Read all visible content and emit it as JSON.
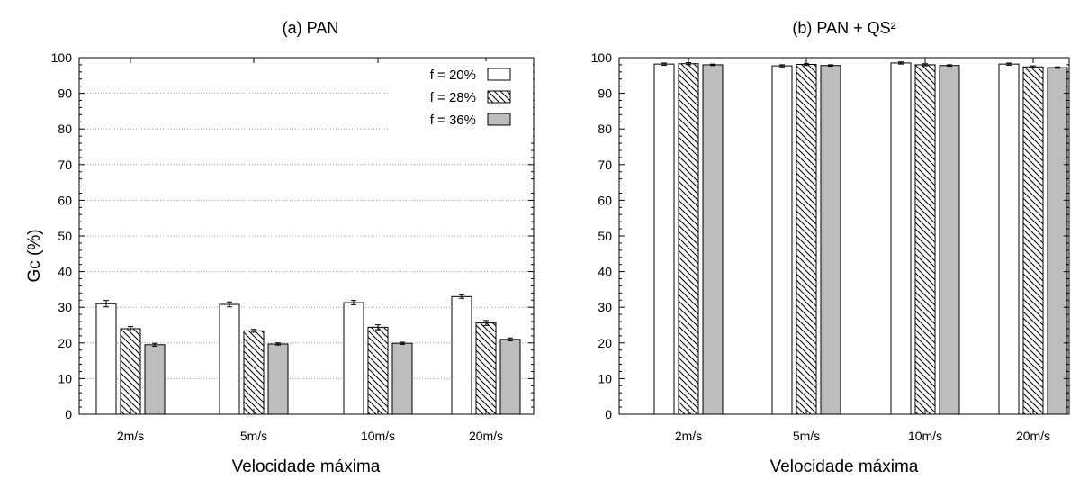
{
  "chart_data": [
    {
      "type": "bar",
      "title": "(a) PAN",
      "xlabel": "Velocidade máxima",
      "ylabel": "Gc (%)",
      "ylim": [
        0,
        100
      ],
      "yticks": [
        0,
        10,
        20,
        30,
        40,
        50,
        60,
        70,
        80,
        90,
        100
      ],
      "grid": true,
      "legend_position": "top-right",
      "categories": [
        "2m/s",
        "5m/s",
        "10m/s",
        "20m/s"
      ],
      "series": [
        {
          "name": "f = 20%",
          "style": "white",
          "values": [
            31.0,
            30.8,
            31.3,
            33.0
          ],
          "errors": [
            0.9,
            0.7,
            0.6,
            0.5
          ]
        },
        {
          "name": "f = 28%",
          "style": "hatch",
          "values": [
            24.0,
            23.4,
            24.4,
            25.6
          ],
          "errors": [
            0.6,
            0.4,
            0.7,
            0.7
          ]
        },
        {
          "name": "f = 36%",
          "style": "gray",
          "values": [
            19.5,
            19.7,
            19.9,
            21.0
          ],
          "errors": [
            0.4,
            0.3,
            0.3,
            0.4
          ]
        }
      ]
    },
    {
      "type": "bar",
      "title": "(b) PAN + QS²",
      "xlabel": "Velocidade máxima",
      "ylabel": "",
      "ylim": [
        0,
        100
      ],
      "yticks": [
        0,
        10,
        20,
        30,
        40,
        50,
        60,
        70,
        80,
        90,
        100
      ],
      "grid": false,
      "categories": [
        "2m/s",
        "5m/s",
        "10m/s",
        "20m/s"
      ],
      "series": [
        {
          "name": "f = 20%",
          "style": "white",
          "values": [
            98.2,
            97.7,
            98.5,
            98.2
          ],
          "errors": [
            0.3,
            0.3,
            0.3,
            0.3
          ]
        },
        {
          "name": "f = 28%",
          "style": "hatch",
          "values": [
            98.3,
            98.1,
            98.0,
            97.4
          ],
          "errors": [
            0.3,
            0.3,
            0.3,
            0.3
          ]
        },
        {
          "name": "f = 36%",
          "style": "gray",
          "values": [
            98.0,
            97.8,
            97.8,
            97.2
          ],
          "errors": [
            0.2,
            0.2,
            0.2,
            0.2
          ]
        }
      ]
    }
  ],
  "colors": {
    "white_fill": "#ffffff",
    "gray_fill": "#bdbdbd",
    "stroke": "#000000"
  }
}
